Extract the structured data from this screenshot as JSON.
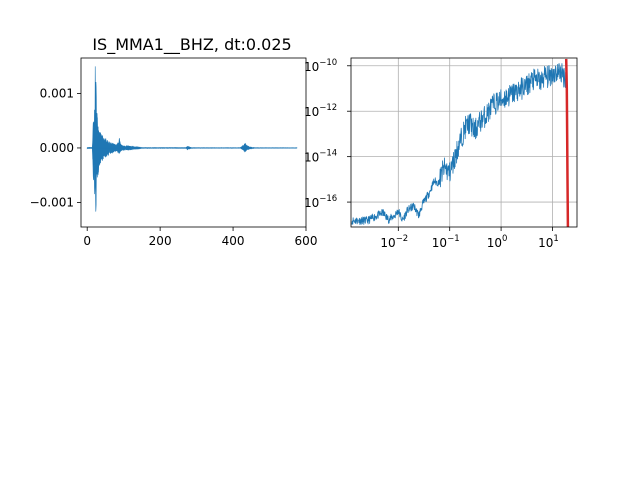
{
  "window": {
    "title": ""
  },
  "chart_data": [
    {
      "type": "line",
      "title": "IS_MMA1__BHZ, dt:0.025",
      "xlabel": "",
      "ylabel": "",
      "xlim": [
        -17,
        600
      ],
      "ylim": [
        -0.00145,
        0.00165
      ],
      "x_ticks": [
        0,
        200,
        400,
        600
      ],
      "x_tick_labels": [
        "0",
        "200",
        "400",
        "600"
      ],
      "y_ticks": [
        -0.001,
        0.0,
        0.001
      ],
      "y_tick_labels": [
        "−0.001",
        "0.000",
        "0.001"
      ],
      "grid": false,
      "series": [
        {
          "color": "#1f77b4",
          "envelope": {
            "t": [
              0,
              14,
              17,
              19,
              21,
              22,
              24,
              26,
              28,
              31,
              35,
              40,
              45,
              50,
              55,
              60,
              66,
              72,
              80,
              86,
              88,
              91,
              95,
              102,
              110,
              125,
              140,
              150,
              270,
              275,
              280,
              286,
              300,
              420,
              428,
              433,
              438,
              445,
              460,
              575
            ],
            "upper": [
              1e-05,
              1e-05,
              0.0006,
              0.0004,
              0.0012,
              0.0015,
              0.0013,
              0.0009,
              0.0006,
              0.00045,
              0.0003,
              0.00025,
              0.0002,
              0.00018,
              0.00015,
              0.00012,
              0.0001,
              8e-05,
              6e-05,
              0.00012,
              0.0002,
              8e-05,
              5e-05,
              4e-05,
              4e-05,
              3e-05,
              2e-05,
              8e-06,
              8e-06,
              3e-05,
              2e-05,
              8e-06,
              6e-06,
              6e-06,
              5e-05,
              9e-05,
              5e-05,
              2e-05,
              6e-06,
              5e-06
            ],
            "lower": [
              -1e-05,
              -1e-05,
              -0.0008,
              -0.0005,
              -0.0011,
              -0.0013,
              -0.0012,
              -0.0008,
              -0.0006,
              -0.00045,
              -0.0003,
              -0.00025,
              -0.0002,
              -0.00018,
              -0.00015,
              -0.00012,
              -0.0001,
              -8e-05,
              -6e-05,
              -0.0001,
              -0.00015,
              -7e-05,
              -5e-05,
              -4e-05,
              -4e-05,
              -3e-05,
              -2e-05,
              -8e-06,
              -8e-06,
              -3e-05,
              -2e-05,
              -8e-06,
              -6e-06,
              -6e-06,
              -4e-05,
              -8e-05,
              -4e-05,
              -2e-05,
              -6e-06,
              -5e-06
            ]
          }
        }
      ]
    },
    {
      "type": "line",
      "title": "",
      "xlabel": "",
      "ylabel": "",
      "xscale": "log",
      "yscale": "log",
      "xlim": [
        0.0012,
        30
      ],
      "ylim": [
        8e-18,
        2.2e-10
      ],
      "x_ticks": [
        0.01,
        0.1,
        1,
        10
      ],
      "x_tick_labels": [
        [
          "10",
          "−2"
        ],
        [
          "10",
          "−1"
        ],
        [
          "10",
          "0"
        ],
        [
          "10",
          "1"
        ]
      ],
      "y_ticks": [
        1e-16,
        1e-14,
        1e-12,
        1e-10
      ],
      "y_tick_labels": [
        [
          "10",
          "−16"
        ],
        [
          "10",
          "−14"
        ],
        [
          "10",
          "−12"
        ],
        [
          "10",
          "−10"
        ]
      ],
      "grid": true,
      "series": [
        {
          "color": "#1f77b4",
          "points": [
            [
              0.00125,
              1.8e-17
            ],
            [
              0.0025,
              1.8e-17
            ],
            [
              0.005,
              4e-17
            ],
            [
              0.0065,
              2e-17
            ],
            [
              0.0085,
              3e-17
            ],
            [
              0.01,
              5e-17
            ],
            [
              0.012,
              1.8e-17
            ],
            [
              0.015,
              5e-17
            ],
            [
              0.02,
              8e-17
            ],
            [
              0.025,
              3e-17
            ],
            [
              0.03,
              1e-16
            ],
            [
              0.04,
              3e-16
            ],
            [
              0.05,
              1e-15
            ],
            [
              0.06,
              8e-16
            ],
            [
              0.07,
              3e-15
            ],
            [
              0.08,
              5e-15
            ],
            [
              0.1,
              3e-15
            ],
            [
              0.12,
              1e-14
            ],
            [
              0.15,
              5e-14
            ],
            [
              0.2,
              3e-13
            ],
            [
              0.25,
              5e-13
            ],
            [
              0.3,
              2e-13
            ],
            [
              0.4,
              6e-13
            ],
            [
              0.5,
              1e-12
            ],
            [
              0.7,
              3e-12
            ],
            [
              1.0,
              5e-12
            ],
            [
              1.5,
              8e-12
            ],
            [
              2.0,
              1.2e-11
            ],
            [
              3.0,
              2e-11
            ],
            [
              4.0,
              3.5e-11
            ],
            [
              5.0,
              4e-11
            ],
            [
              6.0,
              3e-11
            ],
            [
              7.0,
              6e-11
            ],
            [
              8.0,
              5e-11
            ],
            [
              10.0,
              7e-11
            ],
            [
              12.0,
              8e-11
            ],
            [
              14.0,
              9e-11
            ],
            [
              16.0,
              6e-11
            ],
            [
              18.0,
              5e-11
            ]
          ]
        },
        {
          "color": "#d62728",
          "points": [
            [
              18.5,
              2e-10
            ],
            [
              19.0,
              1e-11
            ],
            [
              19.3,
              1e-13
            ],
            [
              19.6,
              1e-15
            ],
            [
              20.0,
              5e-18
            ]
          ]
        }
      ]
    }
  ]
}
